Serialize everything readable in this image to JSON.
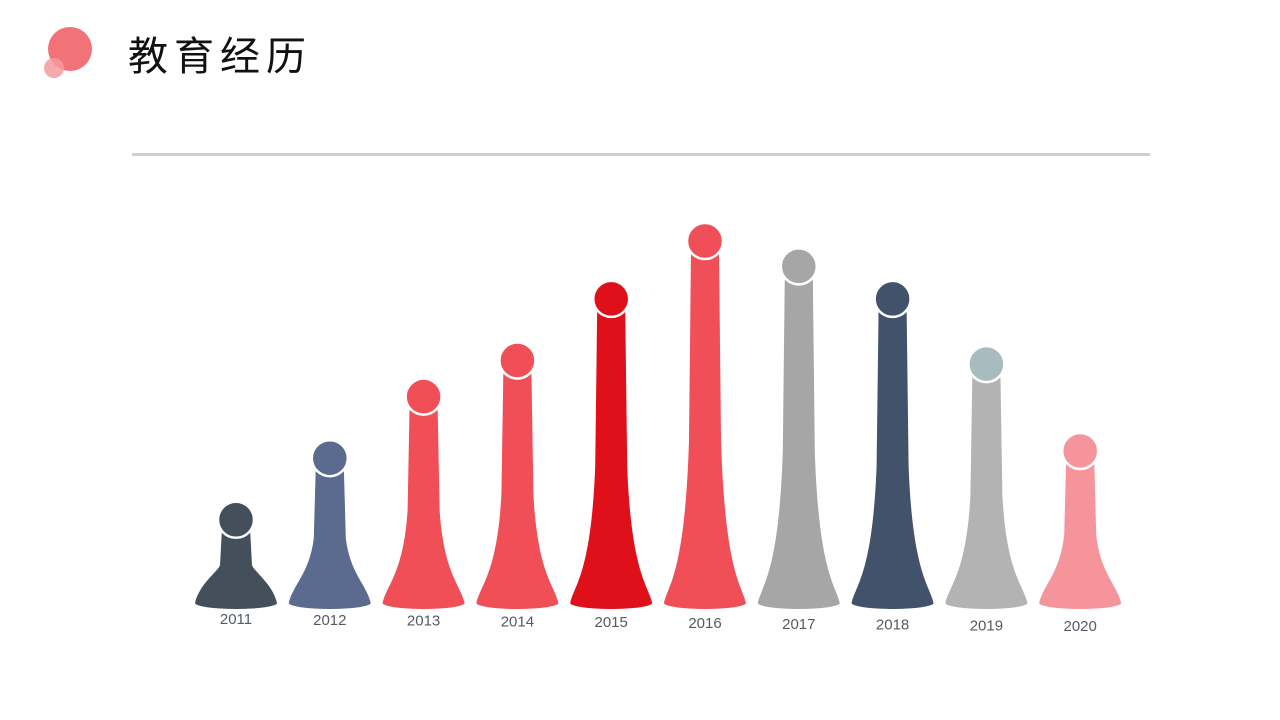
{
  "header": {
    "title": "教育经历",
    "accent": "#f0646a"
  },
  "chart_data": {
    "type": "bar",
    "title": "",
    "xlabel": "",
    "ylabel": "",
    "categories": [
      "2011",
      "2012",
      "2013",
      "2014",
      "2015",
      "2016",
      "2017",
      "2018",
      "2019",
      "2020"
    ],
    "values": [
      23,
      40,
      57,
      67,
      84,
      100,
      93,
      84,
      66,
      42
    ],
    "ylim": [
      0,
      100
    ],
    "grid": false,
    "colors": [
      "#434f5b",
      "#5a6b8f",
      "#f04f58",
      "#f04f58",
      "#e0101a",
      "#f04f58",
      "#a6a6a6",
      "#42526b",
      "#b3b3b3",
      "#f5959b"
    ],
    "marker_colors": [
      "#434f5b",
      "#5a6b8f",
      "#f04f58",
      "#f04f58",
      "#e0101a",
      "#f04f58",
      "#a6a6a6",
      "#42526b",
      "#a8bcc0",
      "#f5959b"
    ]
  }
}
